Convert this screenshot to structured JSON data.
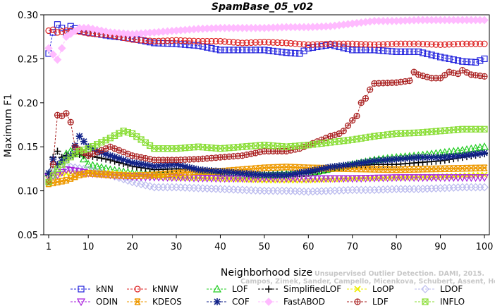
{
  "chart_data": {
    "type": "line",
    "title": "SpamBase_05_v02",
    "xlabel": "Neighborhood size",
    "ylabel": "Maximum F1",
    "xlim": [
      1,
      100
    ],
    "ylim": [
      0.05,
      0.3
    ],
    "xticks": [
      1,
      10,
      20,
      30,
      40,
      50,
      60,
      70,
      80,
      90,
      100
    ],
    "yticks": [
      0.05,
      0.1,
      0.15,
      0.2,
      0.25,
      0.3
    ],
    "ytick_labels": [
      "0.05",
      "0.10",
      "0.15",
      "0.20",
      "0.25",
      "0.30"
    ],
    "grid": false,
    "legend_position": "bottom",
    "watermark": {
      "line1": "Unsupervised Outlier Detection. DAMI, 2015.",
      "line2": "Campos, Zimek, Sander, Campello, Micenkova, Schubert, Assent, Houle"
    },
    "series": [
      {
        "name": "kNN",
        "color": "#2222dd",
        "marker": "square",
        "points": [
          [
            1,
            0.256
          ],
          [
            2,
            0.28
          ],
          [
            3,
            0.289
          ],
          [
            4,
            0.285
          ],
          [
            5,
            0.28
          ],
          [
            6,
            0.287
          ],
          [
            8,
            0.282
          ],
          [
            10,
            0.28
          ],
          [
            15,
            0.276
          ],
          [
            20,
            0.273
          ],
          [
            25,
            0.268
          ],
          [
            30,
            0.267
          ],
          [
            35,
            0.265
          ],
          [
            40,
            0.26
          ],
          [
            45,
            0.26
          ],
          [
            50,
            0.26
          ],
          [
            55,
            0.257
          ],
          [
            58,
            0.256
          ],
          [
            60,
            0.262
          ],
          [
            65,
            0.266
          ],
          [
            70,
            0.26
          ],
          [
            75,
            0.26
          ],
          [
            80,
            0.258
          ],
          [
            85,
            0.258
          ],
          [
            90,
            0.252
          ],
          [
            95,
            0.247
          ],
          [
            98,
            0.246
          ],
          [
            100,
            0.25
          ]
        ]
      },
      {
        "name": "kNNW",
        "color": "#dd2222",
        "marker": "circle",
        "points": [
          [
            1,
            0.282
          ],
          [
            2,
            0.283
          ],
          [
            3,
            0.28
          ],
          [
            5,
            0.282
          ],
          [
            8,
            0.281
          ],
          [
            10,
            0.279
          ],
          [
            15,
            0.277
          ],
          [
            20,
            0.272
          ],
          [
            25,
            0.27
          ],
          [
            30,
            0.271
          ],
          [
            35,
            0.27
          ],
          [
            40,
            0.27
          ],
          [
            45,
            0.268
          ],
          [
            50,
            0.269
          ],
          [
            55,
            0.268
          ],
          [
            60,
            0.266
          ],
          [
            65,
            0.267
          ],
          [
            70,
            0.267
          ],
          [
            75,
            0.266
          ],
          [
            80,
            0.267
          ],
          [
            85,
            0.267
          ],
          [
            90,
            0.266
          ],
          [
            95,
            0.267
          ],
          [
            100,
            0.267
          ]
        ]
      },
      {
        "name": "LOF",
        "color": "#22cc22",
        "marker": "triangle-up",
        "points": [
          [
            1,
            0.12
          ],
          [
            3,
            0.125
          ],
          [
            5,
            0.142
          ],
          [
            7,
            0.148
          ],
          [
            10,
            0.13
          ],
          [
            15,
            0.124
          ],
          [
            20,
            0.12
          ],
          [
            30,
            0.118
          ],
          [
            40,
            0.118
          ],
          [
            50,
            0.118
          ],
          [
            60,
            0.12
          ],
          [
            65,
            0.125
          ],
          [
            70,
            0.13
          ],
          [
            75,
            0.135
          ],
          [
            80,
            0.138
          ],
          [
            85,
            0.14
          ],
          [
            90,
            0.143
          ],
          [
            95,
            0.146
          ],
          [
            100,
            0.15
          ]
        ]
      },
      {
        "name": "SimplifiedLOF",
        "color": "#000000",
        "marker": "plus",
        "points": [
          [
            1,
            0.118
          ],
          [
            2,
            0.138
          ],
          [
            3,
            0.145
          ],
          [
            4,
            0.138
          ],
          [
            5,
            0.14
          ],
          [
            7,
            0.142
          ],
          [
            10,
            0.14
          ],
          [
            15,
            0.135
          ],
          [
            20,
            0.128
          ],
          [
            25,
            0.124
          ],
          [
            30,
            0.125
          ],
          [
            35,
            0.124
          ],
          [
            40,
            0.12
          ],
          [
            45,
            0.12
          ],
          [
            50,
            0.118
          ],
          [
            55,
            0.118
          ],
          [
            60,
            0.12
          ],
          [
            65,
            0.125
          ],
          [
            70,
            0.128
          ],
          [
            75,
            0.13
          ],
          [
            80,
            0.13
          ],
          [
            85,
            0.132
          ],
          [
            90,
            0.134
          ],
          [
            95,
            0.138
          ],
          [
            100,
            0.142
          ]
        ]
      },
      {
        "name": "LoOP",
        "color": "#eeee00",
        "marker": "cross",
        "points": [
          [
            1,
            0.118
          ],
          [
            5,
            0.12
          ],
          [
            10,
            0.122
          ],
          [
            20,
            0.118
          ],
          [
            30,
            0.115
          ],
          [
            40,
            0.114
          ],
          [
            50,
            0.112
          ],
          [
            60,
            0.112
          ],
          [
            70,
            0.114
          ],
          [
            80,
            0.115
          ],
          [
            90,
            0.116
          ],
          [
            100,
            0.118
          ]
        ]
      },
      {
        "name": "LDOF",
        "color": "#bbbbee",
        "marker": "diamond",
        "points": [
          [
            1,
            0.12
          ],
          [
            5,
            0.128
          ],
          [
            10,
            0.124
          ],
          [
            15,
            0.118
          ],
          [
            20,
            0.11
          ],
          [
            25,
            0.104
          ],
          [
            30,
            0.104
          ],
          [
            35,
            0.103
          ],
          [
            40,
            0.102
          ],
          [
            45,
            0.101
          ],
          [
            50,
            0.1
          ],
          [
            55,
            0.1
          ],
          [
            60,
            0.099
          ],
          [
            65,
            0.1
          ],
          [
            70,
            0.101
          ],
          [
            75,
            0.101
          ],
          [
            80,
            0.102
          ],
          [
            85,
            0.102
          ],
          [
            90,
            0.103
          ],
          [
            95,
            0.104
          ],
          [
            100,
            0.104
          ]
        ]
      },
      {
        "name": "ODIN",
        "color": "#aa22dd",
        "marker": "triangle-down",
        "points": [
          [
            1,
            0.116
          ],
          [
            3,
            0.118
          ],
          [
            5,
            0.124
          ],
          [
            8,
            0.122
          ],
          [
            10,
            0.12
          ],
          [
            15,
            0.118
          ],
          [
            20,
            0.116
          ],
          [
            30,
            0.115
          ],
          [
            40,
            0.114
          ],
          [
            50,
            0.114
          ],
          [
            60,
            0.114
          ],
          [
            70,
            0.114
          ],
          [
            80,
            0.115
          ],
          [
            90,
            0.115
          ],
          [
            100,
            0.115
          ]
        ]
      },
      {
        "name": "KDEOS",
        "color": "#ee9900",
        "marker": "star",
        "points": [
          [
            1,
            0.108
          ],
          [
            3,
            0.11
          ],
          [
            5,
            0.112
          ],
          [
            8,
            0.118
          ],
          [
            10,
            0.12
          ],
          [
            15,
            0.118
          ],
          [
            20,
            0.117
          ],
          [
            25,
            0.118
          ],
          [
            30,
            0.12
          ],
          [
            35,
            0.122
          ],
          [
            40,
            0.122
          ],
          [
            45,
            0.124
          ],
          [
            50,
            0.126
          ],
          [
            55,
            0.127
          ],
          [
            60,
            0.126
          ],
          [
            70,
            0.125
          ],
          [
            80,
            0.124
          ],
          [
            90,
            0.125
          ],
          [
            100,
            0.126
          ]
        ]
      },
      {
        "name": "COF",
        "color": "#112288",
        "marker": "asterisk",
        "points": [
          [
            1,
            0.12
          ],
          [
            2,
            0.136
          ],
          [
            3,
            0.13
          ],
          [
            4,
            0.134
          ],
          [
            6,
            0.14
          ],
          [
            8,
            0.162
          ],
          [
            10,
            0.15
          ],
          [
            12,
            0.145
          ],
          [
            15,
            0.14
          ],
          [
            20,
            0.132
          ],
          [
            25,
            0.128
          ],
          [
            30,
            0.13
          ],
          [
            35,
            0.124
          ],
          [
            40,
            0.122
          ],
          [
            45,
            0.12
          ],
          [
            50,
            0.118
          ],
          [
            55,
            0.118
          ],
          [
            60,
            0.122
          ],
          [
            65,
            0.127
          ],
          [
            70,
            0.13
          ],
          [
            75,
            0.134
          ],
          [
            80,
            0.136
          ],
          [
            85,
            0.138
          ],
          [
            90,
            0.138
          ],
          [
            95,
            0.14
          ],
          [
            100,
            0.143
          ]
        ]
      },
      {
        "name": "FastABOD",
        "color": "#ffbbff",
        "marker": "diamond-filled",
        "points": [
          [
            1,
            0.262
          ],
          [
            2,
            0.255
          ],
          [
            3,
            0.249
          ],
          [
            4,
            0.262
          ],
          [
            5,
            0.275
          ],
          [
            8,
            0.285
          ],
          [
            10,
            0.285
          ],
          [
            15,
            0.28
          ],
          [
            20,
            0.278
          ],
          [
            25,
            0.28
          ],
          [
            30,
            0.282
          ],
          [
            35,
            0.284
          ],
          [
            40,
            0.285
          ],
          [
            45,
            0.285
          ],
          [
            50,
            0.285
          ],
          [
            55,
            0.286
          ],
          [
            60,
            0.286
          ],
          [
            65,
            0.287
          ],
          [
            70,
            0.29
          ],
          [
            75,
            0.293
          ],
          [
            80,
            0.293
          ],
          [
            85,
            0.294
          ],
          [
            90,
            0.294
          ],
          [
            95,
            0.294
          ],
          [
            100,
            0.294
          ]
        ]
      },
      {
        "name": "LDF",
        "color": "#aa2222",
        "marker": "circle-plus",
        "points": [
          [
            1,
            0.11
          ],
          [
            2,
            0.13
          ],
          [
            3,
            0.186
          ],
          [
            4,
            0.185
          ],
          [
            5,
            0.188
          ],
          [
            6,
            0.178
          ],
          [
            7,
            0.15
          ],
          [
            10,
            0.14
          ],
          [
            15,
            0.15
          ],
          [
            20,
            0.14
          ],
          [
            25,
            0.135
          ],
          [
            30,
            0.135
          ],
          [
            35,
            0.136
          ],
          [
            40,
            0.138
          ],
          [
            45,
            0.14
          ],
          [
            50,
            0.145
          ],
          [
            55,
            0.145
          ],
          [
            58,
            0.148
          ],
          [
            60,
            0.152
          ],
          [
            63,
            0.158
          ],
          [
            65,
            0.162
          ],
          [
            67,
            0.165
          ],
          [
            68,
            0.168
          ],
          [
            70,
            0.18
          ],
          [
            71,
            0.185
          ],
          [
            72,
            0.2
          ],
          [
            73,
            0.205
          ],
          [
            74,
            0.215
          ],
          [
            75,
            0.222
          ],
          [
            80,
            0.223
          ],
          [
            83,
            0.225
          ],
          [
            84,
            0.235
          ],
          [
            85,
            0.232
          ],
          [
            88,
            0.228
          ],
          [
            90,
            0.228
          ],
          [
            92,
            0.235
          ],
          [
            94,
            0.233
          ],
          [
            95,
            0.237
          ],
          [
            97,
            0.232
          ],
          [
            100,
            0.23
          ]
        ]
      },
      {
        "name": "INFLO",
        "color": "#88dd33",
        "marker": "box-x",
        "points": [
          [
            1,
            0.11
          ],
          [
            3,
            0.125
          ],
          [
            5,
            0.135
          ],
          [
            8,
            0.145
          ],
          [
            10,
            0.148
          ],
          [
            15,
            0.16
          ],
          [
            18,
            0.168
          ],
          [
            20,
            0.165
          ],
          [
            25,
            0.148
          ],
          [
            30,
            0.148
          ],
          [
            35,
            0.15
          ],
          [
            40,
            0.148
          ],
          [
            45,
            0.15
          ],
          [
            50,
            0.152
          ],
          [
            55,
            0.15
          ],
          [
            60,
            0.152
          ],
          [
            65,
            0.155
          ],
          [
            70,
            0.158
          ],
          [
            75,
            0.162
          ],
          [
            80,
            0.165
          ],
          [
            85,
            0.166
          ],
          [
            90,
            0.168
          ],
          [
            95,
            0.17
          ],
          [
            100,
            0.17
          ]
        ]
      }
    ]
  }
}
